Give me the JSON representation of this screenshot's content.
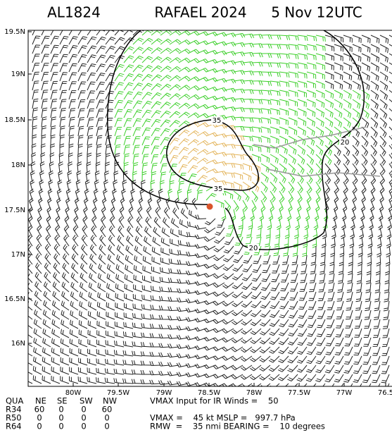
{
  "header": {
    "storm_id": "AL1824",
    "storm_name": "RAFAEL 2024",
    "time": "5 Nov 12UTC"
  },
  "lat_labels": [
    "19.5N",
    "19N",
    "18.5N",
    "18N",
    "17.5N",
    "17N",
    "16.5N",
    "16N"
  ],
  "lon_labels": [
    "80W",
    "79.5W",
    "79W",
    "78.5W",
    "78W",
    "77.5W",
    "77W",
    "76.5"
  ],
  "contour_labels": [
    "35",
    "35",
    "20",
    "20"
  ],
  "table": {
    "header": [
      "QUA",
      "NE",
      "SE",
      "SW",
      "NW"
    ],
    "rows": [
      [
        "R34",
        60,
        0,
        0,
        60
      ],
      [
        "R50",
        0,
        0,
        0,
        0
      ],
      [
        "R64",
        0,
        0,
        0,
        0
      ]
    ]
  },
  "info": [
    "VMAX Input for IR Winds =    50",
    "VMAX =    45 kt MSLP =   997.7 hPa",
    "RMW  =    35 nmi BEARING =    10 degrees"
  ]
}
